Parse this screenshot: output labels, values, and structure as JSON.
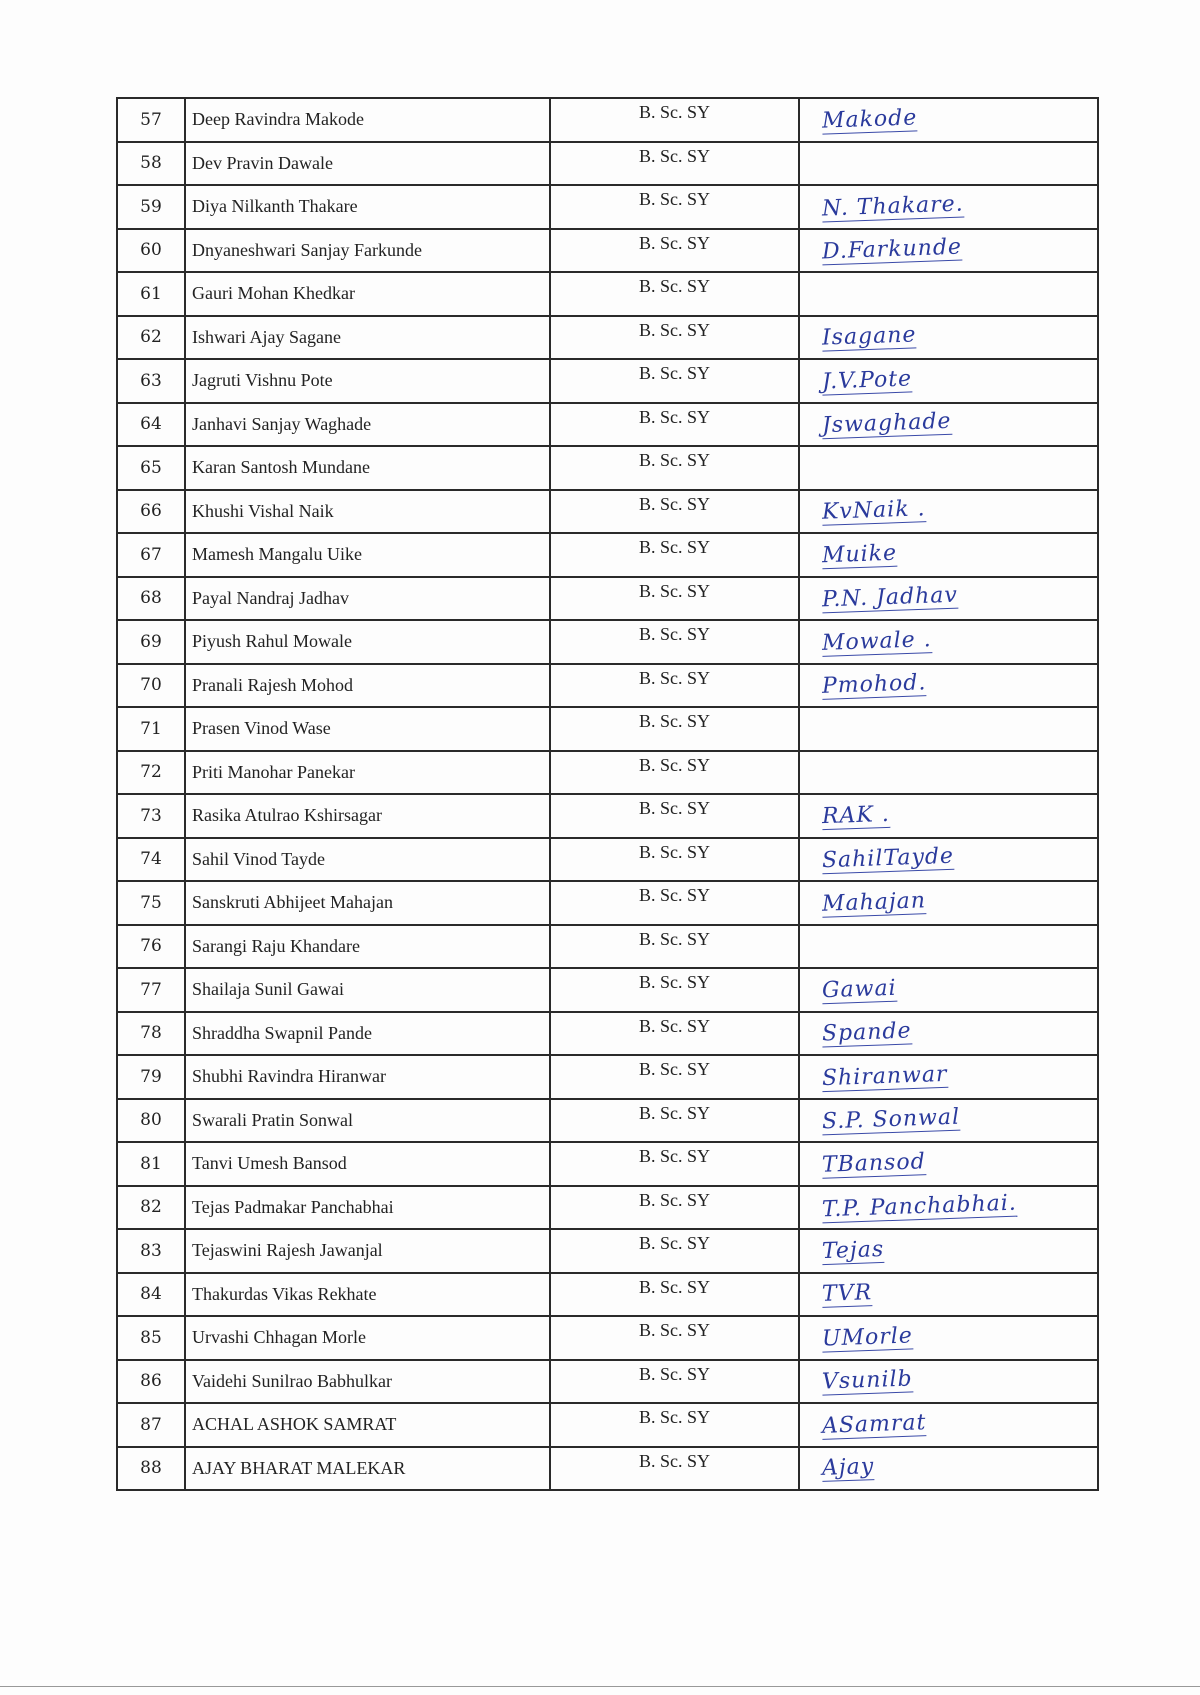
{
  "rows": [
    {
      "no": "57",
      "name": "Deep Ravindra Makode",
      "class": "B. Sc. SY",
      "signature": "Makode"
    },
    {
      "no": "58",
      "name": "Dev Pravin Dawale",
      "class": "B. Sc. SY",
      "signature": ""
    },
    {
      "no": "59",
      "name": "Diya Nilkanth Thakare",
      "class": "B. Sc. SY",
      "signature": "N. Thakare."
    },
    {
      "no": "60",
      "name": "Dnyaneshwari Sanjay Farkunde",
      "class": "B. Sc. SY",
      "signature": "D.Farkunde"
    },
    {
      "no": "61",
      "name": "Gauri Mohan Khedkar",
      "class": "B. Sc. SY",
      "signature": ""
    },
    {
      "no": "62",
      "name": "Ishwari Ajay Sagane",
      "class": "B. Sc. SY",
      "signature": "Isagane"
    },
    {
      "no": "63",
      "name": "Jagruti Vishnu Pote",
      "class": "B. Sc. SY",
      "signature": "J.V.Pote"
    },
    {
      "no": "64",
      "name": "Janhavi Sanjay Waghade",
      "class": "B. Sc. SY",
      "signature": "Jswaghade"
    },
    {
      "no": "65",
      "name": "Karan Santosh Mundane",
      "class": "B. Sc. SY",
      "signature": ""
    },
    {
      "no": "66",
      "name": "Khushi Vishal Naik",
      "class": "B. Sc. SY",
      "signature": "KvNaik ."
    },
    {
      "no": "67",
      "name": "Mamesh Mangalu Uike",
      "class": "B. Sc. SY",
      "signature": "Muike"
    },
    {
      "no": "68",
      "name": "Payal Nandraj Jadhav",
      "class": "B. Sc. SY",
      "signature": "P.N. Jadhav"
    },
    {
      "no": "69",
      "name": "Piyush Rahul Mowale",
      "class": "B. Sc. SY",
      "signature": "Mowale ."
    },
    {
      "no": "70",
      "name": "Pranali Rajesh Mohod",
      "class": "B. Sc. SY",
      "signature": "Pmohod."
    },
    {
      "no": "71",
      "name": "Prasen Vinod Wase",
      "class": "B. Sc. SY",
      "signature": ""
    },
    {
      "no": "72",
      "name": "Priti Manohar Panekar",
      "class": "B. Sc. SY",
      "signature": ""
    },
    {
      "no": "73",
      "name": "Rasika Atulrao Kshirsagar",
      "class": "B. Sc. SY",
      "signature": "RAK ."
    },
    {
      "no": "74",
      "name": "Sahil Vinod Tayde",
      "class": "B. Sc. SY",
      "signature": "SahilTayde"
    },
    {
      "no": "75",
      "name": "Sanskruti Abhijeet Mahajan",
      "class": "B. Sc. SY",
      "signature": "Mahajan"
    },
    {
      "no": "76",
      "name": "Sarangi Raju Khandare",
      "class": "B. Sc. SY",
      "signature": ""
    },
    {
      "no": "77",
      "name": "Shailaja Sunil Gawai",
      "class": "B. Sc. SY",
      "signature": "Gawai"
    },
    {
      "no": "78",
      "name": "Shraddha Swapnil Pande",
      "class": "B. Sc. SY",
      "signature": "Spande"
    },
    {
      "no": "79",
      "name": "Shubhi Ravindra Hiranwar",
      "class": "B. Sc. SY",
      "signature": "Shiranwar"
    },
    {
      "no": "80",
      "name": "Swarali Pratin Sonwal",
      "class": "B. Sc. SY",
      "signature": "S.P. Sonwal"
    },
    {
      "no": "81",
      "name": "Tanvi Umesh Bansod",
      "class": "B. Sc. SY",
      "signature": "TBansod"
    },
    {
      "no": "82",
      "name": "Tejas Padmakar Panchabhai",
      "class": "B. Sc. SY",
      "signature": "T.P. Panchabhai."
    },
    {
      "no": "83",
      "name": "Tejaswini Rajesh Jawanjal",
      "class": "B. Sc. SY",
      "signature": "Tejas"
    },
    {
      "no": "84",
      "name": "Thakurdas Vikas Rekhate",
      "class": "B. Sc. SY",
      "signature": "TVR"
    },
    {
      "no": "85",
      "name": "Urvashi Chhagan Morle",
      "class": "B. Sc. SY",
      "signature": "UMorle"
    },
    {
      "no": "86",
      "name": "Vaidehi Sunilrao Babhulkar",
      "class": "B. Sc. SY",
      "signature": "Vsunilb"
    },
    {
      "no": "87",
      "name": "ACHAL ASHOK SAMRAT",
      "class": "B. Sc. SY",
      "signature": "ASamrat"
    },
    {
      "no": "88",
      "name": "AJAY BHARAT MALEKAR",
      "class": "B. Sc. SY",
      "signature": "Ajay"
    }
  ],
  "colors": {
    "ink": "#2a3a9c",
    "border": "#2a2a2a"
  }
}
